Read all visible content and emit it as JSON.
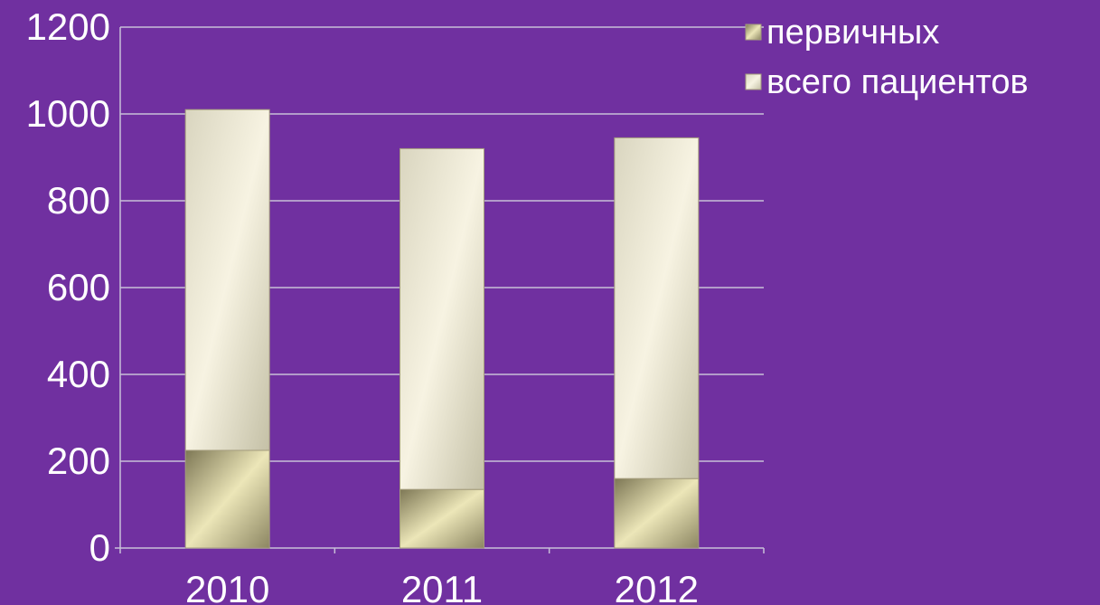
{
  "colors": {
    "background": "#7030a0",
    "axis": "#c8bfd8",
    "bar_top_light": "#f5f1e0",
    "bar_top_dark": "#c6c2a8",
    "bar_bottom_light": "#e8e2b0",
    "bar_bottom_dark": "#8a8460"
  },
  "chart_data": {
    "type": "bar",
    "stacked": true,
    "categories": [
      "2010",
      "2011",
      "2012"
    ],
    "series": [
      {
        "name": "первичных",
        "values": [
          225,
          135,
          160
        ]
      },
      {
        "name": "всего пациентов",
        "values": [
          785,
          785,
          785
        ]
      }
    ],
    "totals": [
      1010,
      920,
      945
    ],
    "ylim": [
      0,
      1200
    ],
    "yticks": [
      0,
      200,
      400,
      600,
      800,
      1000,
      1200
    ],
    "grid": true,
    "legend": "top-right",
    "title": "",
    "xlabel": "",
    "ylabel": ""
  }
}
